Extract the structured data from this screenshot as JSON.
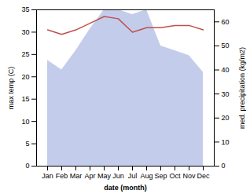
{
  "chart_data": {
    "type": "line",
    "xlabel": "date (month)",
    "ylabel": "max temp (C)",
    "y2label": "med. precipitation (kg/m2)",
    "categories": [
      "Jan",
      "Feb",
      "Mar",
      "Apr",
      "May",
      "Jun",
      "Jul",
      "Aug",
      "Sep",
      "Oct",
      "Nov",
      "Dec"
    ],
    "series": [
      {
        "type": "area",
        "axis": "y2",
        "color": "#b8c4e8",
        "values": [
          44,
          40,
          48,
          57,
          65,
          65,
          63,
          65,
          50,
          48,
          46,
          39
        ]
      },
      {
        "type": "line",
        "color": "#c0504a",
        "values": [
          30.5,
          29.5,
          30.5,
          32.0,
          33.5,
          33.0,
          30.0,
          31.0,
          31.0,
          31.5,
          31.5,
          30.5
        ]
      }
    ],
    "ylim": [
      0,
      35
    ],
    "yticks": [
      0,
      5,
      10,
      15,
      20,
      25,
      30,
      35
    ],
    "y2lim": [
      0,
      65
    ],
    "y2ticks": [
      0,
      10,
      20,
      30,
      40,
      50,
      60
    ],
    "grid": false
  }
}
